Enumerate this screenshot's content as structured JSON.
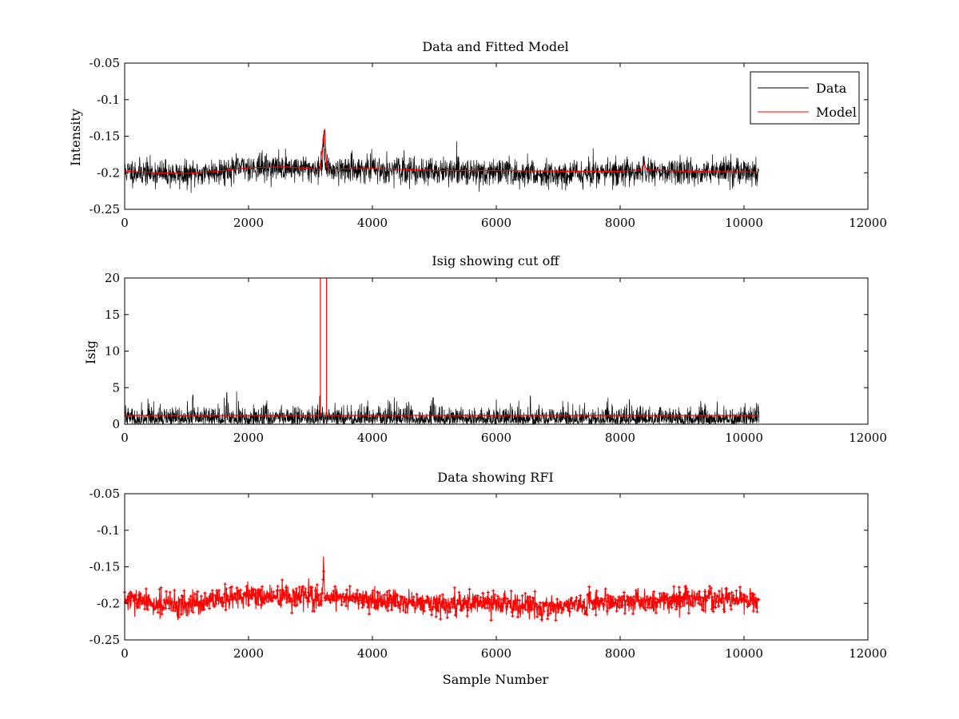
{
  "colors": {
    "data": "#000000",
    "model": "#ff0000",
    "axis": "#000000",
    "background": "#ffffff"
  },
  "chart_data": [
    {
      "id": "panel-1",
      "type": "line",
      "title": "Data and Fitted Model",
      "xlabel": "",
      "ylabel": "Intensity",
      "xlim": [
        0,
        12000
      ],
      "ylim": [
        -0.25,
        -0.05
      ],
      "y_reversed": true,
      "xticks": [
        0,
        2000,
        4000,
        6000,
        8000,
        10000,
        12000
      ],
      "xtick_labels": [
        "0",
        "2000",
        "4000",
        "6000",
        "8000",
        "10000",
        "12000"
      ],
      "yticks": [
        -0.05,
        -0.1,
        -0.15,
        -0.2,
        -0.25
      ],
      "ytick_labels": [
        "-0.05",
        "-0.1",
        "-0.15",
        "-0.2",
        "-0.25"
      ],
      "legend": {
        "position": "top-right",
        "entries": [
          "Data",
          "Model"
        ]
      },
      "series": [
        {
          "name": "Data",
          "color": "#000000",
          "style": "noisy-line",
          "x_range": [
            0,
            10240
          ],
          "baseline": [
            [
              0,
              -0.198
            ],
            [
              1000,
              -0.203
            ],
            [
              2000,
              -0.192
            ],
            [
              3000,
              -0.194
            ],
            [
              4000,
              -0.195
            ],
            [
              5000,
              -0.198
            ],
            [
              6000,
              -0.199
            ],
            [
              6800,
              -0.202
            ],
            [
              8000,
              -0.199
            ],
            [
              9000,
              -0.198
            ],
            [
              10240,
              -0.198
            ]
          ],
          "noise_amplitude": 0.02,
          "spikes": [
            {
              "x": 3210,
              "y": -0.135
            },
            {
              "x": 8380,
              "y": -0.175
            }
          ]
        },
        {
          "name": "Model",
          "color": "#ff0000",
          "points": [
            [
              0,
              -0.198
            ],
            [
              500,
              -0.2
            ],
            [
              1000,
              -0.201
            ],
            [
              1500,
              -0.198
            ],
            [
              2000,
              -0.193
            ],
            [
              2600,
              -0.192
            ],
            [
              3150,
              -0.195
            ],
            [
              3200,
              -0.16
            ],
            [
              3230,
              -0.14
            ],
            [
              3260,
              -0.19
            ],
            [
              3300,
              -0.195
            ],
            [
              4000,
              -0.194
            ],
            [
              5000,
              -0.197
            ],
            [
              6000,
              -0.197
            ],
            [
              7000,
              -0.198
            ],
            [
              8000,
              -0.198
            ],
            [
              8350,
              -0.196
            ],
            [
              8390,
              -0.188
            ],
            [
              8430,
              -0.196
            ],
            [
              9000,
              -0.198
            ],
            [
              10240,
              -0.199
            ]
          ]
        }
      ]
    },
    {
      "id": "panel-2",
      "type": "line",
      "title": "Isig showing cut off",
      "xlabel": "",
      "ylabel": "Isig",
      "xlim": [
        0,
        12000
      ],
      "ylim": [
        0,
        20
      ],
      "xticks": [
        0,
        2000,
        4000,
        6000,
        8000,
        10000,
        12000
      ],
      "xtick_labels": [
        "0",
        "2000",
        "4000",
        "6000",
        "8000",
        "10000",
        "12000"
      ],
      "yticks": [
        0,
        5,
        10,
        15,
        20
      ],
      "ytick_labels": [
        "0",
        "5",
        "10",
        "15",
        "20"
      ],
      "series": [
        {
          "name": "Isig",
          "color": "#000000",
          "style": "noisy-abs",
          "x_range": [
            0,
            10240
          ],
          "typical_max": 2.5,
          "peaks": [
            {
              "x": 1100,
              "y": 4.2
            },
            {
              "x": 1650,
              "y": 4.5
            },
            {
              "x": 3150,
              "y": 4.0
            },
            {
              "x": 4980,
              "y": 3.8
            },
            {
              "x": 6550,
              "y": 4.4
            },
            {
              "x": 8150,
              "y": 3.5
            }
          ]
        },
        {
          "name": "Cutoff",
          "color": "#ff0000",
          "level": 1.2,
          "x_range": [
            0,
            10240
          ],
          "cut_region": [
            3160,
            3260
          ]
        }
      ]
    },
    {
      "id": "panel-3",
      "type": "scatter",
      "title": "Data showing RFI",
      "xlabel": "Sample Number",
      "ylabel": "",
      "xlim": [
        0,
        12000
      ],
      "ylim": [
        -0.25,
        -0.05
      ],
      "y_reversed": true,
      "xticks": [
        0,
        2000,
        4000,
        6000,
        8000,
        10000,
        12000
      ],
      "xtick_labels": [
        "0",
        "2000",
        "4000",
        "6000",
        "8000",
        "10000",
        "12000"
      ],
      "yticks": [
        -0.05,
        -0.1,
        -0.15,
        -0.2,
        -0.25
      ],
      "ytick_labels": [
        "-0.05",
        "-0.1",
        "-0.15",
        "-0.2",
        "-0.25"
      ],
      "series": [
        {
          "name": "Data",
          "color": "#000000",
          "style": "noisy-line",
          "x_range": [
            0,
            10240
          ],
          "baseline": [
            [
              0,
              -0.196
            ],
            [
              1000,
              -0.203
            ],
            [
              2000,
              -0.19
            ],
            [
              3000,
              -0.192
            ],
            [
              4000,
              -0.194
            ],
            [
              5000,
              -0.2
            ],
            [
              6000,
              -0.198
            ],
            [
              6600,
              -0.205
            ],
            [
              8000,
              -0.198
            ],
            [
              9000,
              -0.196
            ],
            [
              10240,
              -0.196
            ]
          ],
          "noise_amplitude": 0.018,
          "spikes": [
            {
              "x": 3210,
              "y": -0.135
            }
          ]
        },
        {
          "name": "RFI",
          "color": "#ff0000",
          "style": "markers"
        }
      ]
    }
  ]
}
